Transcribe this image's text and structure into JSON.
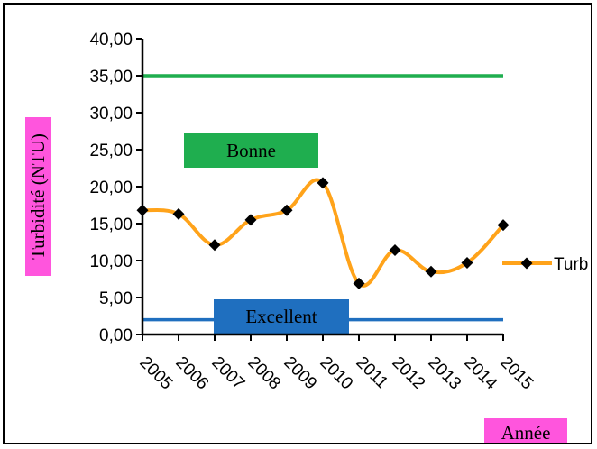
{
  "chart_data": {
    "type": "line",
    "categories": [
      "2005",
      "2006",
      "2007",
      "2008",
      "2009",
      "2010",
      "2011",
      "2012",
      "2013",
      "2014",
      "2015"
    ],
    "series": [
      {
        "name": "Turb",
        "values": [
          16.8,
          16.3,
          12.1,
          15.5,
          16.8,
          20.5,
          6.9,
          11.4,
          8.5,
          9.7,
          14.8
        ]
      }
    ],
    "y_ticks": [
      "0,00",
      "5,00",
      "10,00",
      "15,00",
      "20,00",
      "25,00",
      "30,00",
      "35,00",
      "40,00"
    ],
    "ylim": [
      0,
      40
    ],
    "ylabel": "Turbidité (NTU)",
    "xlabel": "Année",
    "thresholds": [
      {
        "value": 35,
        "color": "#1fae4f"
      },
      {
        "value": 2,
        "color": "#1f6fbf"
      }
    ],
    "annotations": [
      {
        "text": "Bonne",
        "bg": "#1fae4f"
      },
      {
        "text": "Excellent",
        "bg": "#1f6fbf"
      }
    ],
    "legend_label": "Turb",
    "legend_position": "right",
    "colors": {
      "line": "#ffa31a",
      "marker": "#000000",
      "axis_label_bg": "#ff55dd"
    }
  }
}
